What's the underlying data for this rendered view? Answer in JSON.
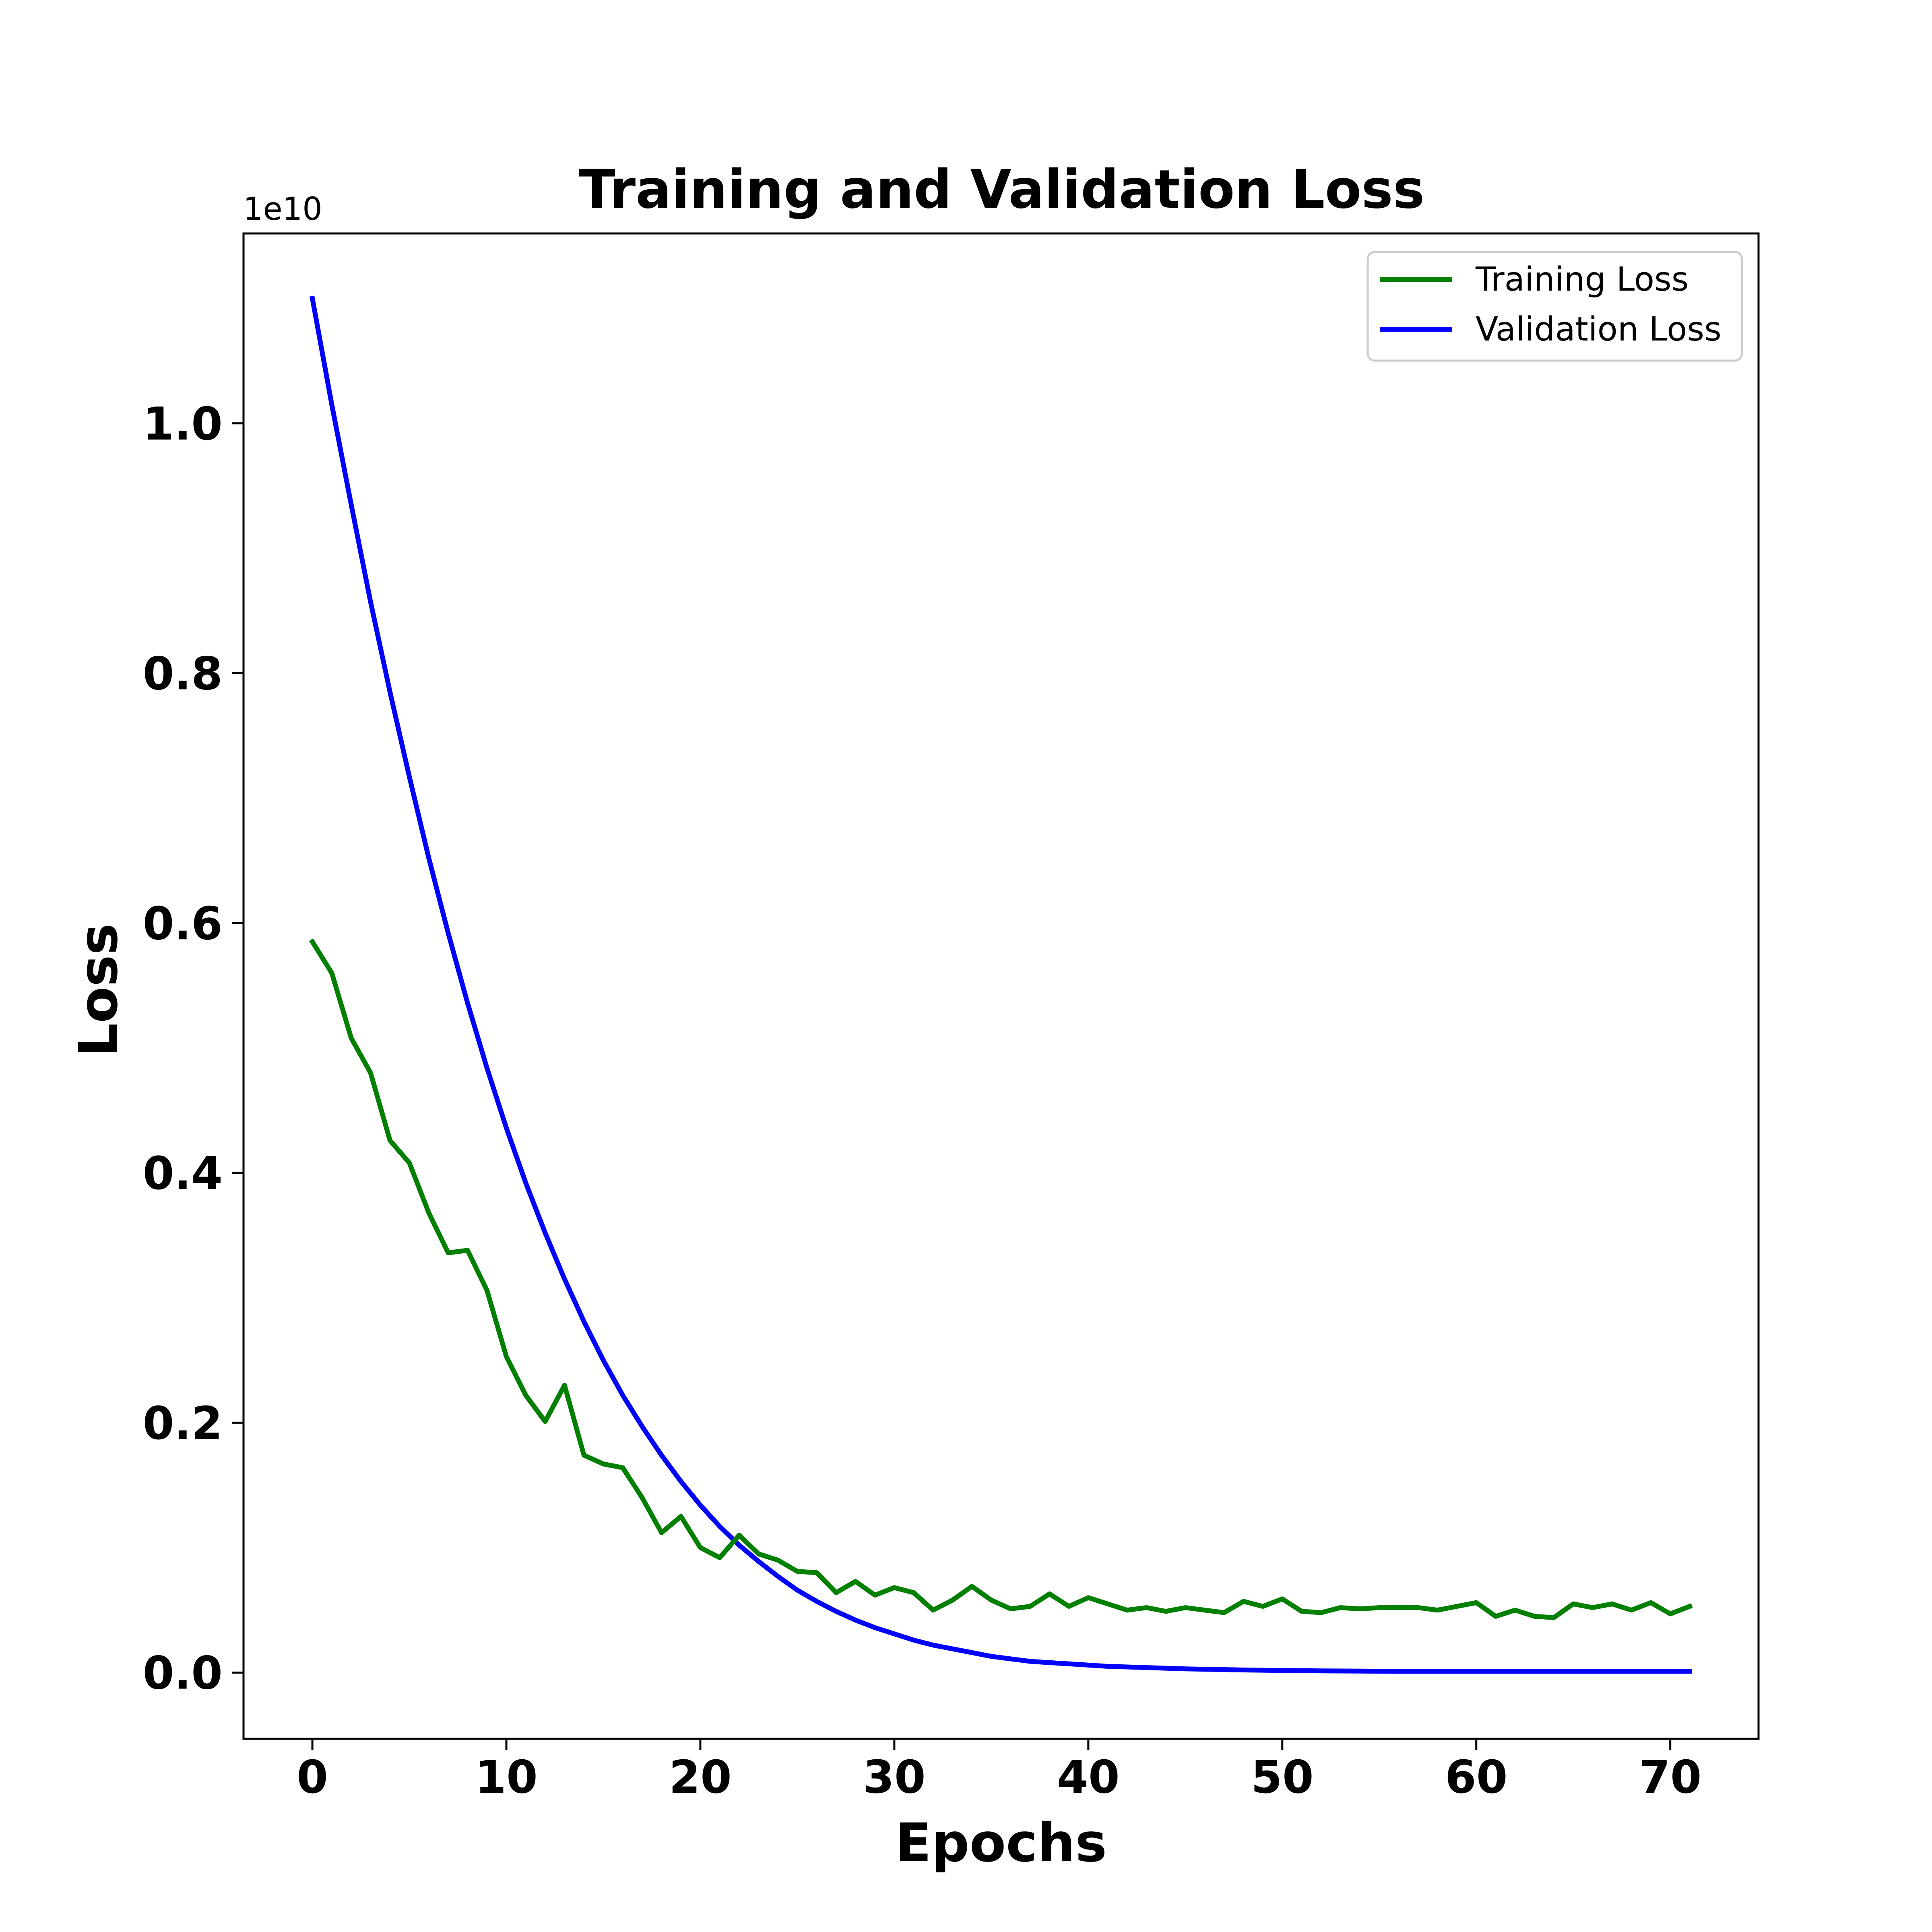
{
  "chart_data": {
    "type": "line",
    "title": "Training and Validation Loss",
    "xlabel": "Epochs",
    "ylabel": "Loss",
    "y_offset_label": "1e10",
    "xlim": [
      -3.55,
      74.55
    ],
    "ylim": [
      -0.053,
      1.152
    ],
    "xticks": [
      0,
      10,
      20,
      30,
      40,
      50,
      60,
      70
    ],
    "xtick_labels": [
      "0",
      "10",
      "20",
      "30",
      "40",
      "50",
      "60",
      "70"
    ],
    "yticks": [
      0.0,
      0.2,
      0.4,
      0.6,
      0.8,
      1.0
    ],
    "ytick_labels": [
      "0.0",
      "0.2",
      "0.4",
      "0.6",
      "0.8",
      "1.0"
    ],
    "grid": false,
    "legend_position": "top-right",
    "x": [
      0,
      1,
      2,
      3,
      4,
      5,
      6,
      7,
      8,
      9,
      10,
      11,
      12,
      13,
      14,
      15,
      16,
      17,
      18,
      19,
      20,
      21,
      22,
      23,
      24,
      25,
      26,
      27,
      28,
      29,
      30,
      31,
      32,
      33,
      34,
      35,
      36,
      37,
      38,
      39,
      40,
      41,
      42,
      43,
      44,
      45,
      46,
      47,
      48,
      49,
      50,
      51,
      52,
      53,
      54,
      55,
      56,
      57,
      58,
      59,
      60,
      61,
      62,
      63,
      64,
      65,
      66,
      67,
      68,
      69,
      70,
      71
    ],
    "series": [
      {
        "name": "Training Loss",
        "color": "#007f00",
        "values": [
          0.585,
          0.56,
          0.508,
          0.48,
          0.426,
          0.408,
          0.368,
          0.336,
          0.338,
          0.306,
          0.253,
          0.222,
          0.201,
          0.23,
          0.174,
          0.167,
          0.164,
          0.14,
          0.112,
          0.125,
          0.1,
          0.092,
          0.11,
          0.095,
          0.09,
          0.081,
          0.08,
          0.064,
          0.073,
          0.062,
          0.068,
          0.064,
          0.05,
          0.058,
          0.069,
          0.058,
          0.051,
          0.053,
          0.063,
          0.053,
          0.06,
          0.055,
          0.05,
          0.052,
          0.049,
          0.052,
          0.05,
          0.048,
          0.057,
          0.053,
          0.059,
          0.049,
          0.048,
          0.052,
          0.051,
          0.052,
          0.052,
          0.052,
          0.05,
          0.053,
          0.056,
          0.045,
          0.05,
          0.045,
          0.044,
          0.055,
          0.052,
          0.055,
          0.05,
          0.056,
          0.047,
          0.053
        ]
      },
      {
        "name": "Validation Loss",
        "color": "#0000ff",
        "values": [
          1.1,
          1.015,
          0.935,
          0.857,
          0.785,
          0.717,
          0.652,
          0.592,
          0.536,
          0.484,
          0.436,
          0.392,
          0.352,
          0.315,
          0.281,
          0.25,
          0.222,
          0.197,
          0.174,
          0.153,
          0.134,
          0.117,
          0.102,
          0.089,
          0.077,
          0.066,
          0.057,
          0.049,
          0.042,
          0.036,
          0.031,
          0.026,
          0.022,
          0.019,
          0.016,
          0.013,
          0.011,
          0.009,
          0.008,
          0.007,
          0.006,
          0.005,
          0.0045,
          0.004,
          0.0035,
          0.003,
          0.0027,
          0.0024,
          0.0021,
          0.0019,
          0.0017,
          0.0015,
          0.0014,
          0.0013,
          0.0012,
          0.0011,
          0.001,
          0.001,
          0.001,
          0.001,
          0.001,
          0.001,
          0.001,
          0.001,
          0.001,
          0.001,
          0.001,
          0.001,
          0.001,
          0.001,
          0.001,
          0.001
        ]
      }
    ]
  }
}
